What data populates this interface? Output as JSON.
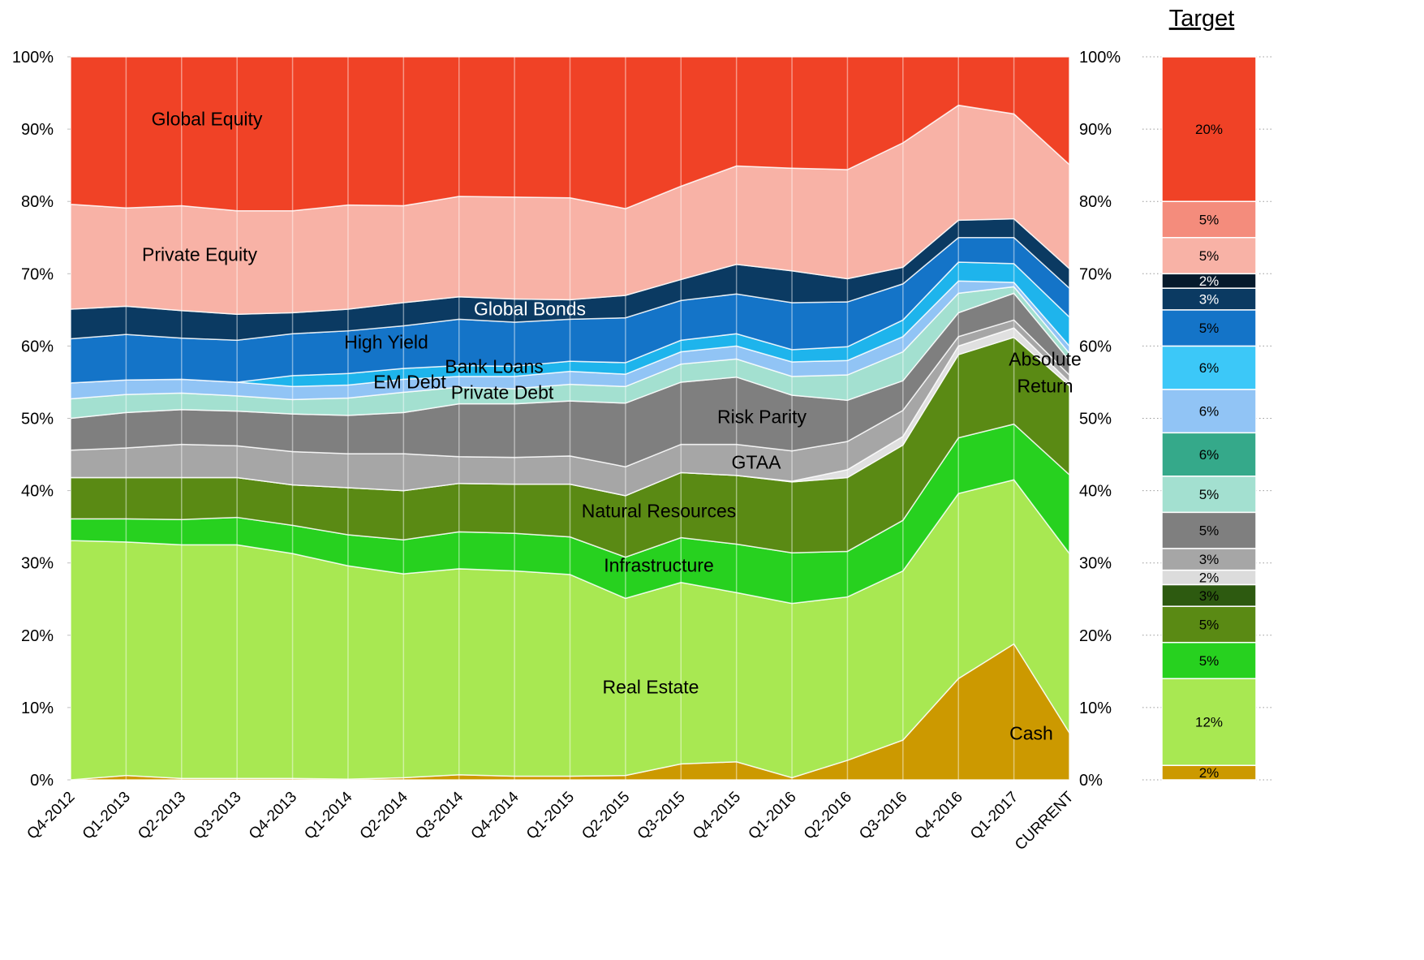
{
  "chart_data": [
    {
      "type": "stacked-area",
      "categories": [
        "Q4-2012",
        "Q1-2013",
        "Q2-2013",
        "Q3-2013",
        "Q4-2013",
        "Q1-2014",
        "Q2-2014",
        "Q3-2014",
        "Q4-2014",
        "Q1-2015",
        "Q2-2015",
        "Q3-2015",
        "Q4-2015",
        "Q1-2016",
        "Q2-2016",
        "Q3-2016",
        "Q4-2016",
        "Q1-2017",
        "CURRENT"
      ],
      "series": [
        {
          "name": "Cash",
          "color": "#cc9900",
          "values": [
            0,
            0.6,
            0.2,
            0.2,
            0.2,
            0.1,
            0.3,
            0.7,
            0.5,
            0.5,
            0.6,
            2.2,
            2.5,
            0.3,
            2.7,
            5.5,
            14,
            18.8,
            6.5
          ]
        },
        {
          "name": "Real Estate",
          "color": "#a8e852",
          "values": [
            33.1,
            32.3,
            32.3,
            32.3,
            31.1,
            29.5,
            28.2,
            28.5,
            28.4,
            27.9,
            24.5,
            25.1,
            23.4,
            24.1,
            22.6,
            23.4,
            25.6,
            22.7,
            24.8
          ]
        },
        {
          "name": "Infrastructure",
          "color": "#27d11f",
          "values": [
            3.0,
            3.2,
            3.5,
            3.8,
            3.9,
            4.3,
            4.7,
            5.1,
            5.2,
            5.2,
            5.7,
            6.2,
            6.7,
            7.0,
            6.3,
            7.0,
            7.7,
            7.7,
            10.9
          ]
        },
        {
          "name": "Natural Resources",
          "color": "#5a8a14",
          "values": [
            5.7,
            5.7,
            5.8,
            5.5,
            5.6,
            6.5,
            6.8,
            6.7,
            6.8,
            7.3,
            8.5,
            9.0,
            9.5,
            9.8,
            10.2,
            10.4,
            11.5,
            12.0,
            12.3
          ]
        },
        {
          "name": "Absolute Return",
          "color": "#e0e0e0",
          "values": [
            0,
            0,
            0,
            0,
            0,
            0,
            0,
            0,
            0,
            0,
            0,
            0,
            0,
            0.1,
            1.1,
            1.2,
            1.2,
            1.3,
            0.5
          ]
        },
        {
          "name": "GTAA",
          "color": "#a6a6a6",
          "values": [
            3.8,
            4.1,
            4.6,
            4.4,
            4.6,
            4.7,
            5.1,
            3.7,
            3.7,
            3.9,
            4.0,
            3.9,
            4.3,
            4.2,
            3.9,
            3.6,
            1.3,
            1.1,
            1.0
          ]
        },
        {
          "name": "Risk Parity",
          "color": "#7f7f7f",
          "values": [
            4.4,
            4.9,
            4.8,
            4.8,
            5.2,
            5.3,
            5.7,
            7.3,
            7.4,
            7.6,
            8.8,
            8.6,
            9.3,
            7.7,
            5.7,
            4.1,
            3.3,
            3.7,
            2.0
          ]
        },
        {
          "name": "Private Debt",
          "color": "#a3e0d0",
          "values": [
            2.7,
            2.5,
            2.3,
            2.1,
            2.0,
            2.4,
            2.8,
            2.3,
            2.1,
            2.3,
            2.3,
            2.5,
            2.5,
            2.6,
            3.5,
            4.0,
            2.7,
            0.9,
            1.0
          ]
        },
        {
          "name": "Bank Loans",
          "color": "#91c4f5",
          "values": [
            2.2,
            2.0,
            1.9,
            1.9,
            1.8,
            1.8,
            1.8,
            1.5,
            1.7,
            1.8,
            1.7,
            1.7,
            1.8,
            2.0,
            2.0,
            2.1,
            1.7,
            0.6,
            1.0
          ]
        },
        {
          "name": "EM Debt",
          "color": "#1eb4ec",
          "values": [
            0,
            0,
            0,
            0,
            1.5,
            1.6,
            1.5,
            1.5,
            1.4,
            1.4,
            1.6,
            1.6,
            1.7,
            1.7,
            1.9,
            2.3,
            2.6,
            2.6,
            4.0
          ]
        },
        {
          "name": "High Yield",
          "color": "#1474c8",
          "values": [
            6.1,
            6.3,
            5.7,
            5.8,
            5.8,
            5.9,
            5.9,
            6.4,
            6.1,
            5.8,
            6.2,
            5.5,
            5.5,
            6.5,
            6.2,
            5.0,
            3.4,
            3.6,
            4.0
          ]
        },
        {
          "name": "Global Bonds",
          "color": "#0b3a62",
          "values": [
            4.1,
            3.9,
            3.8,
            3.6,
            2.9,
            3.0,
            3.2,
            3.1,
            3.2,
            2.7,
            3.1,
            2.9,
            4.1,
            4.4,
            3.2,
            2.3,
            2.4,
            2.6,
            2.7
          ]
        },
        {
          "name": "Private Equity",
          "color": "#f8b2a6",
          "values": [
            14.5,
            13.6,
            14.5,
            14.3,
            14.1,
            14.4,
            13.4,
            13.9,
            14.1,
            14.1,
            12.0,
            12.9,
            13.6,
            14.2,
            15.1,
            17.2,
            15.9,
            14.5,
            14.4
          ]
        },
        {
          "name": "Global Equity",
          "color": "#f04226",
          "values": [
            20.4,
            20.9,
            20.6,
            21.3,
            21.3,
            20.5,
            20.6,
            19.3,
            19.4,
            19.5,
            21.0,
            17.9,
            15.1,
            15.4,
            15.6,
            11.9,
            6.7,
            7.9,
            14.9
          ]
        }
      ],
      "ylim": [
        0,
        100
      ],
      "yticks": [
        {
          "value": 0,
          "label": "0%"
        },
        {
          "value": 10,
          "label": "10%"
        },
        {
          "value": 20,
          "label": "20%"
        },
        {
          "value": 30,
          "label": "30%"
        },
        {
          "value": 40,
          "label": "40%"
        },
        {
          "value": 50,
          "label": "50%"
        },
        {
          "value": 60,
          "label": "60%"
        },
        {
          "value": 70,
          "label": "70%"
        },
        {
          "value": 80,
          "label": "80%"
        },
        {
          "value": 90,
          "label": "90%"
        },
        {
          "value": 100,
          "label": "100%"
        }
      ]
    },
    {
      "type": "stacked-bar",
      "title": "Target",
      "values": [
        2,
        12,
        5,
        5,
        3,
        2,
        3,
        5,
        5,
        6,
        6,
        6,
        5,
        3,
        2,
        5,
        5,
        20
      ],
      "value_labels": [
        "2%",
        "12%",
        "5%",
        "5%",
        "3%",
        "2%",
        "3%",
        "5%",
        "5%",
        "6%",
        "6%",
        "6%",
        "5%",
        "3%",
        "2%",
        "5%",
        "5%",
        "20%"
      ],
      "colors": [
        "#cc9900",
        "#a8e852",
        "#27d11f",
        "#5a8a14",
        "#2d5a10",
        "#dcdcdc",
        "#a6a6a6",
        "#7f7f7f",
        "#a3e0d0",
        "#35a98a",
        "#91c4f5",
        "#3cc8f8",
        "#1474c8",
        "#0b3a62",
        "#061a2c",
        "#f8b2a6",
        "#f48c7c",
        "#f04226"
      ],
      "ylim": [
        0,
        100
      ]
    }
  ]
}
